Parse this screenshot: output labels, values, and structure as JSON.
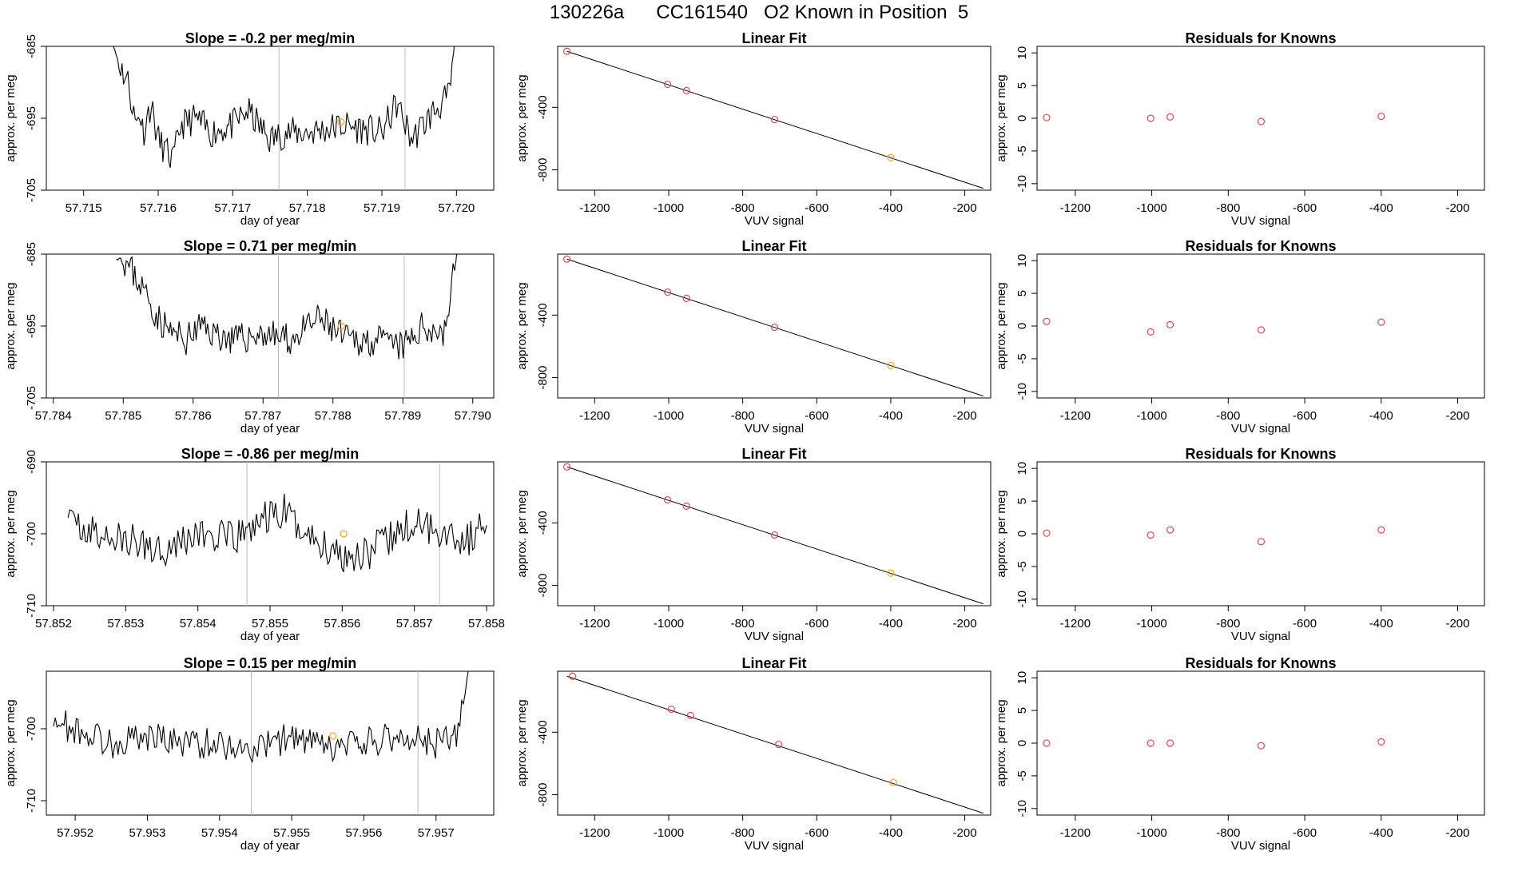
{
  "page_title": "130226a      CC161540   O2 Known in Position  5",
  "colors": {
    "line": "#000000",
    "frame": "#000000",
    "marker": "#d94e4e",
    "highlight": "#f5a623",
    "vline": "#bbbbbb"
  },
  "chart_data": [
    {
      "type": "line",
      "title": "Slope =  -0.2  per meg/min",
      "xlabel": "day of year",
      "ylabel": "approx. per meg",
      "xlim": [
        57.7145,
        57.7205
      ],
      "ylim": [
        -705,
        -685
      ],
      "xticks": [
        57.715,
        57.716,
        57.717,
        57.718,
        57.719,
        57.72
      ],
      "xticklabels": [
        "57.715",
        "57.716",
        "57.717",
        "57.718",
        "57.719",
        "57.720"
      ],
      "yticks": [
        -705,
        -695,
        -685
      ],
      "yticklabels": [
        "-705",
        "-695",
        "-685"
      ],
      "x_start": 57.7153,
      "x_end": 57.72,
      "points": [
        [
          57.7153,
          -682
        ],
        [
          57.7155,
          -688
        ],
        [
          57.7156,
          -690
        ],
        [
          57.7157,
          -696
        ],
        [
          57.71575,
          -694
        ],
        [
          57.7158,
          -697
        ],
        [
          57.7159,
          -693
        ],
        [
          57.716,
          -698
        ],
        [
          57.7162,
          -701
        ],
        [
          57.7163,
          -696
        ],
        [
          57.7165,
          -695
        ],
        [
          57.7167,
          -697
        ],
        [
          57.717,
          -696
        ],
        [
          57.7172,
          -694
        ],
        [
          57.7175,
          -698
        ],
        [
          57.7177,
          -697
        ],
        [
          57.718,
          -697
        ],
        [
          57.7185,
          -696
        ],
        [
          57.719,
          -697
        ],
        [
          57.7192,
          -693
        ],
        [
          57.7194,
          -698
        ],
        [
          57.7197,
          -694
        ],
        [
          57.7199,
          -692
        ],
        [
          57.72,
          -682
        ]
      ],
      "noise": 2.2,
      "seed": 11,
      "vlines": [
        57.71762,
        57.71931
      ],
      "highlight": [
        57.71845,
        -695.5
      ]
    },
    {
      "type": "line",
      "title": "Slope =  0.71  per meg/min",
      "xlabel": "day of year",
      "ylabel": "approx. per meg",
      "xlim": [
        57.7839,
        57.7903
      ],
      "ylim": [
        -705,
        -685
      ],
      "xticks": [
        57.784,
        57.785,
        57.786,
        57.787,
        57.788,
        57.789,
        57.79
      ],
      "xticklabels": [
        "57.784",
        "57.785",
        "57.786",
        "57.787",
        "57.788",
        "57.789",
        "57.790"
      ],
      "yticks": [
        -705,
        -695,
        -685
      ],
      "yticklabels": [
        "-705",
        "-695",
        "-685"
      ],
      "x_start": 57.7849,
      "x_end": 57.7898,
      "points": [
        [
          57.7849,
          -685
        ],
        [
          57.7851,
          -687
        ],
        [
          57.7853,
          -690
        ],
        [
          57.7855,
          -694
        ],
        [
          57.7857,
          -696
        ],
        [
          57.7859,
          -697
        ],
        [
          57.7861,
          -695
        ],
        [
          57.7863,
          -696
        ],
        [
          57.7866,
          -697
        ],
        [
          57.787,
          -696
        ],
        [
          57.7874,
          -697
        ],
        [
          57.7878,
          -694
        ],
        [
          57.7882,
          -697
        ],
        [
          57.7886,
          -697
        ],
        [
          57.789,
          -698
        ],
        [
          57.7893,
          -695
        ],
        [
          57.7896,
          -696
        ],
        [
          57.7898,
          -683
        ]
      ],
      "noise": 2.2,
      "seed": 23,
      "vlines": [
        57.78722,
        57.78902
      ],
      "highlight": [
        57.78812,
        -695
      ]
    },
    {
      "type": "line",
      "title": "Slope =  -0.86  per meg/min",
      "xlabel": "day of year",
      "ylabel": "approx. per meg",
      "xlim": [
        57.8519,
        57.8581
      ],
      "ylim": [
        -710,
        -690
      ],
      "xticks": [
        57.852,
        57.853,
        57.854,
        57.855,
        57.856,
        57.857,
        57.858
      ],
      "xticklabels": [
        "57.852",
        "57.853",
        "57.854",
        "57.855",
        "57.856",
        "57.857",
        "57.858"
      ],
      "yticks": [
        -710,
        -700,
        -690
      ],
      "yticklabels": [
        "-710",
        "-700",
        "-690"
      ],
      "x_start": 57.8522,
      "x_end": 57.858,
      "points": [
        [
          57.8522,
          -697
        ],
        [
          57.8525,
          -700
        ],
        [
          57.853,
          -701
        ],
        [
          57.8535,
          -702
        ],
        [
          57.854,
          -700
        ],
        [
          57.8545,
          -701
        ],
        [
          57.8549,
          -698
        ],
        [
          57.8552,
          -697
        ],
        [
          57.8555,
          -700
        ],
        [
          57.8558,
          -702
        ],
        [
          57.8561,
          -703
        ],
        [
          57.8565,
          -702
        ],
        [
          57.8569,
          -699
        ],
        [
          57.8573,
          -699
        ],
        [
          57.8577,
          -701
        ],
        [
          57.858,
          -699
        ]
      ],
      "noise": 2.6,
      "seed": 37,
      "vlines": [
        57.85468,
        57.85735
      ],
      "highlight": [
        57.85602,
        -700
      ]
    },
    {
      "type": "line",
      "title": "Slope =  0.15  per meg/min",
      "xlabel": "day of year",
      "ylabel": "approx. per meg",
      "xlim": [
        57.9516,
        57.9578
      ],
      "ylim": [
        -712,
        -692
      ],
      "xticks": [
        57.952,
        57.953,
        57.954,
        57.955,
        57.956,
        57.957
      ],
      "xticklabels": [
        "57.952",
        "57.953",
        "57.954",
        "57.955",
        "57.956",
        "57.957"
      ],
      "yticks": [
        -710,
        -700
      ],
      "yticklabels": [
        "-710",
        "-700"
      ],
      "x_start": 57.9517,
      "x_end": 57.9575,
      "points": [
        [
          57.9517,
          -699
        ],
        [
          57.952,
          -700
        ],
        [
          57.9525,
          -702
        ],
        [
          57.953,
          -701
        ],
        [
          57.9535,
          -702
        ],
        [
          57.954,
          -702
        ],
        [
          57.9545,
          -703
        ],
        [
          57.955,
          -701
        ],
        [
          57.9555,
          -703
        ],
        [
          57.956,
          -702
        ],
        [
          57.9565,
          -701
        ],
        [
          57.957,
          -702
        ],
        [
          57.9573,
          -701
        ],
        [
          57.9575,
          -689
        ]
      ],
      "noise": 2.2,
      "seed": 53,
      "vlines": [
        57.95444,
        57.95675
      ],
      "highlight": [
        57.95557,
        -701
      ]
    },
    {
      "type": "scatter",
      "title": "Linear Fit",
      "xlabel": "VUV signal",
      "ylabel": "approx. per meg",
      "xlim": [
        -1300,
        -130
      ],
      "ylim": [
        -930,
        -10
      ],
      "xticks": [
        -1200,
        -1000,
        -800,
        -600,
        -400,
        -200
      ],
      "xticklabels": [
        "-1200",
        "-1000",
        "-800",
        "-600",
        "-400",
        "-200"
      ],
      "yticks": [
        -800,
        -400
      ],
      "yticklabels": [
        "-800",
        "-400"
      ],
      "fit_line": [
        [
          -1275,
          -42
        ],
        [
          -150,
          -918
        ]
      ],
      "points": [
        [
          -1275,
          -42
        ],
        [
          -1003,
          -253
        ],
        [
          -952,
          -293
        ],
        [
          -714,
          -478
        ],
        [
          -400,
          -722
        ]
      ],
      "highlight_index": 4
    },
    {
      "type": "scatter",
      "title": "Linear Fit",
      "xlabel": "VUV signal",
      "ylabel": "approx. per meg",
      "xlim": [
        -1300,
        -130
      ],
      "ylim": [
        -930,
        -10
      ],
      "xticks": [
        -1200,
        -1000,
        -800,
        -600,
        -400,
        -200
      ],
      "xticklabels": [
        "-1200",
        "-1000",
        "-800",
        "-600",
        "-400",
        "-200"
      ],
      "yticks": [
        -800,
        -400
      ],
      "yticklabels": [
        "-800",
        "-400"
      ],
      "fit_line": [
        [
          -1275,
          -42
        ],
        [
          -150,
          -918
        ]
      ],
      "points": [
        [
          -1275,
          -42
        ],
        [
          -1003,
          -253
        ],
        [
          -952,
          -293
        ],
        [
          -714,
          -478
        ],
        [
          -400,
          -722
        ]
      ],
      "highlight_index": 4
    },
    {
      "type": "scatter",
      "title": "Linear Fit",
      "xlabel": "VUV signal",
      "ylabel": "approx. per meg",
      "xlim": [
        -1300,
        -130
      ],
      "ylim": [
        -930,
        -10
      ],
      "xticks": [
        -1200,
        -1000,
        -800,
        -600,
        -400,
        -200
      ],
      "xticklabels": [
        "-1200",
        "-1000",
        "-800",
        "-600",
        "-400",
        "-200"
      ],
      "yticks": [
        -800,
        -400
      ],
      "yticklabels": [
        "-800",
        "-400"
      ],
      "fit_line": [
        [
          -1275,
          -42
        ],
        [
          -150,
          -918
        ]
      ],
      "points": [
        [
          -1275,
          -42
        ],
        [
          -1003,
          -253
        ],
        [
          -952,
          -293
        ],
        [
          -714,
          -478
        ],
        [
          -400,
          -722
        ]
      ],
      "highlight_index": 4
    },
    {
      "type": "scatter",
      "title": "Linear Fit",
      "xlabel": "VUV signal",
      "ylabel": "approx. per meg",
      "xlim": [
        -1300,
        -130
      ],
      "ylim": [
        -930,
        -10
      ],
      "xticks": [
        -1200,
        -1000,
        -800,
        -600,
        -400,
        -200
      ],
      "xticklabels": [
        "-1200",
        "-1000",
        "-800",
        "-600",
        "-400",
        "-200"
      ],
      "yticks": [
        -800,
        -400
      ],
      "yticklabels": [
        "-800",
        "-400"
      ],
      "fit_line": [
        [
          -1275,
          -42
        ],
        [
          -150,
          -918
        ]
      ],
      "points": [
        [
          -1260,
          -42
        ],
        [
          -993,
          -253
        ],
        [
          -941,
          -293
        ],
        [
          -703,
          -478
        ],
        [
          -393,
          -722
        ]
      ],
      "highlight_index": 4
    },
    {
      "type": "scatter",
      "title": "Residuals for Knowns",
      "xlabel": "VUV signal",
      "ylabel": "approx. per meg",
      "xlim": [
        -1300,
        -130
      ],
      "ylim": [
        -11,
        11
      ],
      "xticks": [
        -1200,
        -1000,
        -800,
        -600,
        -400,
        -200
      ],
      "xticklabels": [
        "-1200",
        "-1000",
        "-800",
        "-600",
        "-400",
        "-200"
      ],
      "yticks": [
        -10,
        -5,
        0,
        5,
        10
      ],
      "yticklabels": [
        "-10",
        "-5",
        "0",
        "5",
        "10"
      ],
      "points": [
        [
          -1275,
          0.1
        ],
        [
          -1003,
          0
        ],
        [
          -952,
          0.2
        ],
        [
          -714,
          -0.5
        ],
        [
          -400,
          0.3
        ]
      ]
    },
    {
      "type": "scatter",
      "title": "Residuals for Knowns",
      "xlabel": "VUV signal",
      "ylabel": "approx. per meg",
      "xlim": [
        -1300,
        -130
      ],
      "ylim": [
        -11,
        11
      ],
      "xticks": [
        -1200,
        -1000,
        -800,
        -600,
        -400,
        -200
      ],
      "xticklabels": [
        "-1200",
        "-1000",
        "-800",
        "-600",
        "-400",
        "-200"
      ],
      "yticks": [
        -10,
        -5,
        0,
        5,
        10
      ],
      "yticklabels": [
        "-10",
        "-5",
        "0",
        "5",
        "10"
      ],
      "points": [
        [
          -1275,
          0.7
        ],
        [
          -1003,
          -0.9
        ],
        [
          -952,
          0.2
        ],
        [
          -714,
          -0.6
        ],
        [
          -400,
          0.6
        ]
      ]
    },
    {
      "type": "scatter",
      "title": "Residuals for Knowns",
      "xlabel": "VUV signal",
      "ylabel": "approx. per meg",
      "xlim": [
        -1300,
        -130
      ],
      "ylim": [
        -11,
        11
      ],
      "xticks": [
        -1200,
        -1000,
        -800,
        -600,
        -400,
        -200
      ],
      "xticklabels": [
        "-1200",
        "-1000",
        "-800",
        "-600",
        "-400",
        "-200"
      ],
      "yticks": [
        -10,
        -5,
        0,
        5,
        10
      ],
      "yticklabels": [
        "-10",
        "-5",
        "0",
        "5",
        "10"
      ],
      "points": [
        [
          -1275,
          0.1
        ],
        [
          -1003,
          -0.2
        ],
        [
          -952,
          0.6
        ],
        [
          -714,
          -1.2
        ],
        [
          -400,
          0.6
        ]
      ]
    },
    {
      "type": "scatter",
      "title": "Residuals for Knowns",
      "xlabel": "VUV signal",
      "ylabel": "approx. per meg",
      "xlim": [
        -1300,
        -130
      ],
      "ylim": [
        -11,
        11
      ],
      "xticks": [
        -1200,
        -1000,
        -800,
        -600,
        -400,
        -200
      ],
      "xticklabels": [
        "-1200",
        "-1000",
        "-800",
        "-600",
        "-400",
        "-200"
      ],
      "yticks": [
        -10,
        -5,
        0,
        5,
        10
      ],
      "yticklabels": [
        "-10",
        "-5",
        "0",
        "5",
        "10"
      ],
      "points": [
        [
          -1275,
          0
        ],
        [
          -1003,
          0
        ],
        [
          -952,
          0
        ],
        [
          -714,
          -0.4
        ],
        [
          -400,
          0.2
        ]
      ]
    }
  ]
}
